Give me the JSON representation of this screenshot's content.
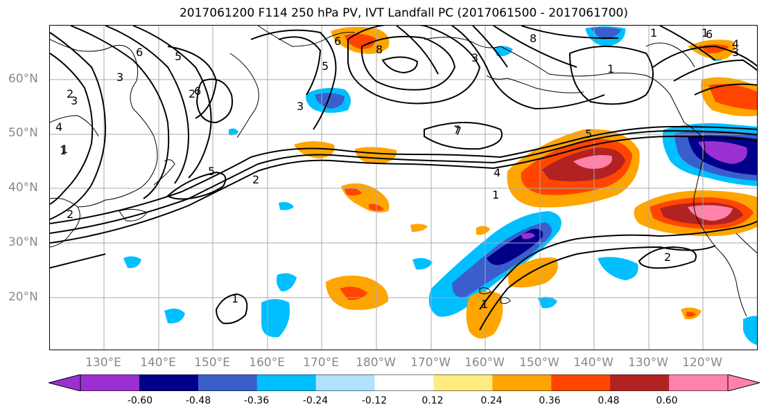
{
  "title": "2017061200 F114 250 hPa PV, IVT Landfall PC (2017061500 - 2017061700)",
  "lat_labels": [
    "60°N",
    "50°N",
    "40°N",
    "30°N",
    "20°N"
  ],
  "lon_labels": [
    "130°E",
    "140°E",
    "150°E",
    "160°E",
    "170°E",
    "180°W",
    "170°W",
    "160°W",
    "150°W",
    "140°W",
    "130°W",
    "120°W"
  ],
  "colorbar": {
    "colors": [
      "#9b30d0",
      "#00008b",
      "#3a5fcd",
      "#00bfff",
      "#b0e2ff",
      "#ffffff",
      "#ffeb7f",
      "#ffa500",
      "#ff4500",
      "#b22222",
      "#ff82ab"
    ],
    "tick_labels": [
      "-0.60",
      "-0.48",
      "-0.36",
      "-0.24",
      "-0.12",
      "0.12",
      "0.24",
      "0.36",
      "0.48",
      "0.60"
    ]
  },
  "contour_labels": [
    "6",
    "5",
    "3",
    "2",
    "3",
    "4",
    "1",
    "6",
    "3",
    "5",
    "2",
    "2",
    "1",
    "6",
    "8",
    "5",
    "3",
    "8",
    "7",
    "5",
    "4",
    "1",
    "1",
    "6",
    "3",
    "4",
    "1",
    "2",
    "2",
    "1",
    "7",
    "1",
    "1"
  ],
  "colors": {
    "grid": "#aaaaaa",
    "axis_label": "#888888"
  }
}
